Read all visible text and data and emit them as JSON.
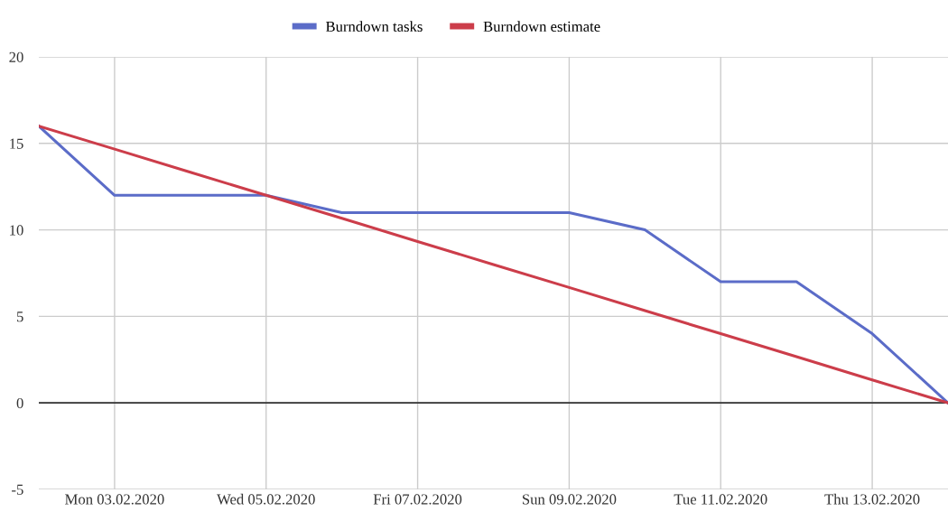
{
  "chart_data": {
    "type": "line",
    "x": [
      "2020-02-02",
      "2020-02-03",
      "2020-02-04",
      "2020-02-05",
      "2020-02-06",
      "2020-02-07",
      "2020-02-08",
      "2020-02-09",
      "2020-02-10",
      "2020-02-11",
      "2020-02-12",
      "2020-02-13",
      "2020-02-14"
    ],
    "series": [
      {
        "name": "Burndown tasks",
        "color": "#5b6cc8",
        "values": [
          16,
          12,
          12,
          12,
          11,
          11,
          11,
          11,
          10,
          7,
          7,
          4,
          0
        ]
      },
      {
        "name": "Burndown estimate",
        "color": "#cc3d4a",
        "values": [
          16,
          14.67,
          13.33,
          12,
          10.67,
          9.33,
          8,
          6.67,
          5.33,
          4,
          2.67,
          1.33,
          0
        ]
      }
    ],
    "xlim": [
      "2020-02-02",
      "2020-02-14"
    ],
    "xticks": [
      {
        "value": "2020-02-03",
        "label": "Mon 03.02.2020"
      },
      {
        "value": "2020-02-05",
        "label": "Wed 05.02.2020"
      },
      {
        "value": "2020-02-07",
        "label": "Fri 07.02.2020"
      },
      {
        "value": "2020-02-09",
        "label": "Sun 09.02.2020"
      },
      {
        "value": "2020-02-11",
        "label": "Tue 11.02.2020"
      },
      {
        "value": "2020-02-13",
        "label": "Thu 13.02.2020"
      }
    ],
    "ylim": [
      -5,
      20
    ],
    "yticks": [
      -5,
      0,
      5,
      10,
      15,
      20
    ],
    "ref_lines": [
      {
        "axis": "y",
        "value": 0,
        "color": "#333333"
      }
    ],
    "grid": true,
    "legend": "top",
    "marker": "none",
    "line_style": "solid"
  }
}
